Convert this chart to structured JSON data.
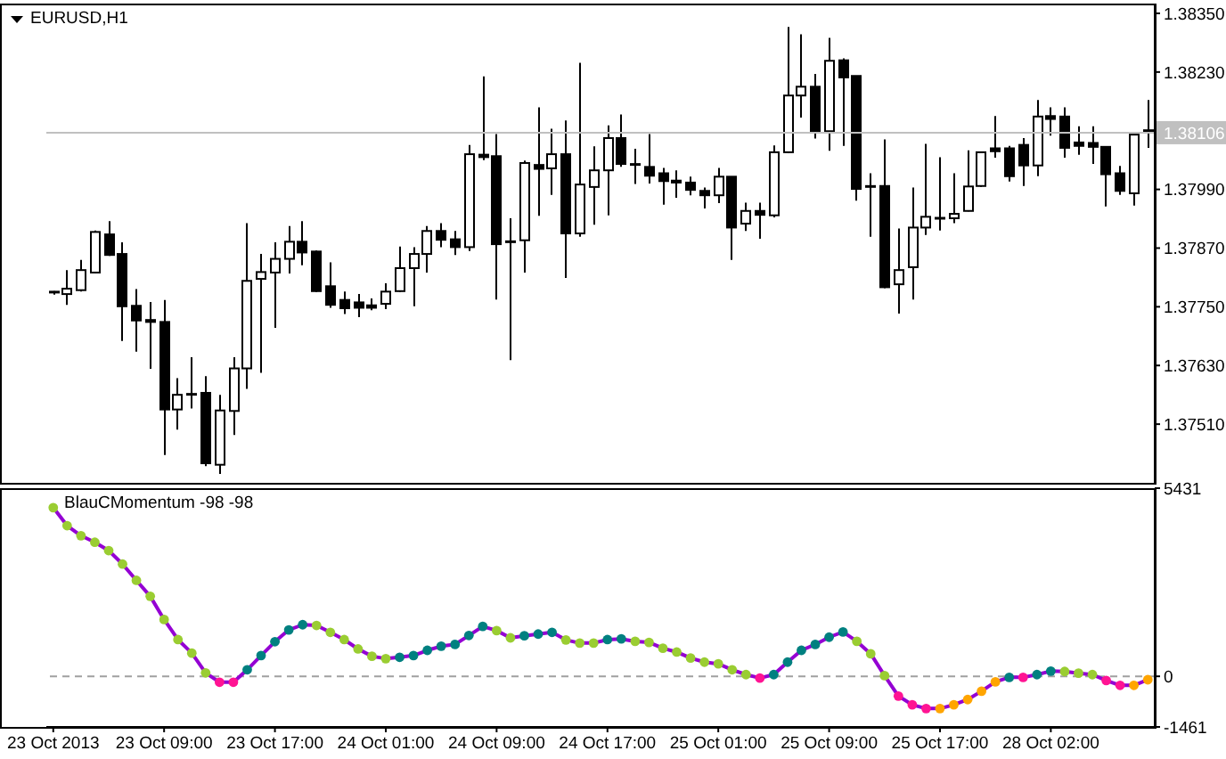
{
  "chart_data": [
    {
      "type": "candlestick",
      "title": "EURUSD,H1",
      "color": "#000000",
      "categories": [
        null,
        null,
        null,
        null,
        null,
        null,
        null,
        null,
        null,
        null,
        null,
        null,
        null,
        null,
        null,
        null,
        null,
        null,
        null,
        null,
        null,
        null,
        null,
        null,
        null,
        null,
        null,
        null,
        null,
        null,
        null,
        null,
        null,
        null,
        null,
        null,
        null,
        null,
        null,
        null,
        null,
        null,
        null,
        null,
        null,
        null,
        null,
        null,
        null,
        null,
        null,
        null,
        null,
        null,
        null,
        null,
        null,
        null,
        null,
        null,
        null,
        null,
        null,
        null,
        null,
        null,
        null,
        null,
        null,
        null,
        null,
        null,
        null,
        null,
        null,
        null,
        null,
        null,
        null,
        null
      ],
      "ohlc": [
        [
          1.3778,
          1.37782,
          1.37775,
          1.37777
        ],
        [
          1.37776,
          1.37825,
          1.37754,
          1.37787
        ],
        [
          1.37784,
          1.37846,
          1.37781,
          1.37825
        ],
        [
          1.3782,
          1.37906,
          1.37819,
          1.37903
        ],
        [
          1.37898,
          1.37925,
          1.37854,
          1.37856
        ],
        [
          1.37858,
          1.37882,
          1.3768,
          1.37751
        ],
        [
          1.37752,
          1.37786,
          1.37658,
          1.37722
        ],
        [
          1.37723,
          1.3776,
          1.37623,
          1.37719
        ],
        [
          1.37719,
          1.37764,
          1.37447,
          1.3754
        ],
        [
          1.3754,
          1.37604,
          1.37499,
          1.3757
        ],
        [
          1.37571,
          1.37647,
          1.37542,
          1.37571
        ],
        [
          1.37574,
          1.37608,
          1.37424,
          1.3743
        ],
        [
          1.37427,
          1.3757,
          1.37408,
          1.37538
        ],
        [
          1.37537,
          1.37647,
          1.37488,
          1.37624
        ],
        [
          1.37624,
          1.37921,
          1.37582,
          1.37803
        ],
        [
          1.37807,
          1.37858,
          1.37615,
          1.37821
        ],
        [
          1.3782,
          1.37882,
          1.37707,
          1.37848
        ],
        [
          1.37848,
          1.37915,
          1.37818,
          1.37883
        ],
        [
          1.37883,
          1.37925,
          1.37835,
          1.37861
        ],
        [
          1.37863,
          1.37865,
          1.3778,
          1.37782
        ],
        [
          1.37792,
          1.37841,
          1.37748,
          1.37754
        ],
        [
          1.37764,
          1.37781,
          1.37735,
          1.37747
        ],
        [
          1.37759,
          1.37776,
          1.37729,
          1.37748
        ],
        [
          1.37753,
          1.37767,
          1.37743,
          1.37748
        ],
        [
          1.37756,
          1.37798,
          1.37745,
          1.37781
        ],
        [
          1.37782,
          1.37873,
          1.3778,
          1.37829
        ],
        [
          1.37829,
          1.37872,
          1.37751,
          1.37858
        ],
        [
          1.37858,
          1.37915,
          1.3782,
          1.37905
        ],
        [
          1.37905,
          1.37921,
          1.37872,
          1.37887
        ],
        [
          1.37888,
          1.37905,
          1.37856,
          1.37872
        ],
        [
          1.37872,
          1.38081,
          1.37864,
          1.38062
        ],
        [
          1.38061,
          1.38221,
          1.3805,
          1.38056
        ],
        [
          1.38058,
          1.38103,
          1.37765,
          1.37878
        ],
        [
          1.37883,
          1.37931,
          1.37641,
          1.37883
        ],
        [
          1.37886,
          1.38049,
          1.3782,
          1.38044
        ],
        [
          1.3804,
          1.38158,
          1.37936,
          1.38032
        ],
        [
          1.38033,
          1.38114,
          1.37979,
          1.38062
        ],
        [
          1.38062,
          1.38131,
          1.37809,
          1.379
        ],
        [
          1.379,
          1.38249,
          1.37893,
          1.38
        ],
        [
          1.37995,
          1.38078,
          1.37918,
          1.38029
        ],
        [
          1.38029,
          1.38121,
          1.37937,
          1.38095
        ],
        [
          1.38095,
          1.38143,
          1.38036,
          1.38042
        ],
        [
          1.38041,
          1.38073,
          1.38001,
          1.38039
        ],
        [
          1.38036,
          1.38103,
          1.38002,
          1.38018
        ],
        [
          1.38023,
          1.38034,
          1.37959,
          1.38007
        ],
        [
          1.38008,
          1.38029,
          1.37973,
          1.38004
        ],
        [
          1.38004,
          1.38016,
          1.37978,
          1.37989
        ],
        [
          1.37987,
          1.37994,
          1.37951,
          1.37978
        ],
        [
          1.37978,
          1.38034,
          1.37962,
          1.38016
        ],
        [
          1.38016,
          1.38016,
          1.37846,
          1.37912
        ],
        [
          1.3792,
          1.37963,
          1.37905,
          1.37946
        ],
        [
          1.37946,
          1.37963,
          1.37889,
          1.37938
        ],
        [
          1.37937,
          1.3808,
          1.37933,
          1.38066
        ],
        [
          1.38066,
          1.38322,
          1.38064,
          1.38182
        ],
        [
          1.38182,
          1.38307,
          1.38137,
          1.382
        ],
        [
          1.382,
          1.38226,
          1.38094,
          1.38109
        ],
        [
          1.38109,
          1.383,
          1.38069,
          1.38253
        ],
        [
          1.38254,
          1.38258,
          1.38079,
          1.38219
        ],
        [
          1.38222,
          1.38222,
          1.37967,
          1.37991
        ],
        [
          1.37996,
          1.38023,
          1.37893,
          1.37993
        ],
        [
          1.37997,
          1.38092,
          1.37788,
          1.3779
        ],
        [
          1.37796,
          1.3791,
          1.37736,
          1.37825
        ],
        [
          1.37831,
          1.37994,
          1.37765,
          1.37912
        ],
        [
          1.37912,
          1.38083,
          1.37897,
          1.37934
        ],
        [
          1.37931,
          1.38056,
          1.37906,
          1.37931
        ],
        [
          1.37931,
          1.38023,
          1.37921,
          1.3794
        ],
        [
          1.37946,
          1.3807,
          1.37945,
          1.37996
        ],
        [
          1.37997,
          1.38066,
          1.37995,
          1.38066
        ],
        [
          1.38074,
          1.3814,
          1.38055,
          1.38068
        ],
        [
          1.38074,
          1.38079,
          1.38006,
          1.38017
        ],
        [
          1.38081,
          1.38095,
          1.37997,
          1.38039
        ],
        [
          1.38039,
          1.38173,
          1.38017,
          1.38139
        ],
        [
          1.3814,
          1.38158,
          1.381,
          1.38134
        ],
        [
          1.38139,
          1.38158,
          1.38055,
          1.38075
        ],
        [
          1.38086,
          1.38119,
          1.38061,
          1.38079
        ],
        [
          1.38085,
          1.38119,
          1.38042,
          1.38077
        ],
        [
          1.38077,
          1.38077,
          1.37955,
          1.38021
        ],
        [
          1.38023,
          1.38038,
          1.37979,
          1.37987
        ],
        [
          1.37982,
          1.38102,
          1.37957,
          1.38102
        ],
        [
          1.38111,
          1.38173,
          1.38075,
          1.38106
        ]
      ],
      "ylim": [
        1.3739,
        1.3837
      ],
      "yticks": [
        {
          "value": 1.3751,
          "label": "1.37510"
        },
        {
          "value": 1.3763,
          "label": "1.37630"
        },
        {
          "value": 1.3775,
          "label": "1.37750"
        },
        {
          "value": 1.3787,
          "label": "1.37870"
        },
        {
          "value": 1.3799,
          "label": "1.37990"
        },
        {
          "value": 1.3823,
          "label": "1.38230"
        },
        {
          "value": 1.3835,
          "label": "1.38350"
        }
      ],
      "ref_lines": [
        {
          "axis": "y",
          "value": 1.38106,
          "label": "1.38106",
          "color": "#c0c0c0"
        }
      ],
      "tick_labels": "y"
    },
    {
      "type": "line",
      "title": "BlauCMomentum -98 -98",
      "categories": [
        "23 Oct 2013",
        null,
        null,
        null,
        null,
        null,
        null,
        null,
        "23 Oct 09:00",
        null,
        null,
        null,
        null,
        null,
        null,
        null,
        "23 Oct 17:00",
        null,
        null,
        null,
        null,
        null,
        null,
        null,
        "24 Oct 01:00",
        null,
        null,
        null,
        null,
        null,
        null,
        null,
        "24 Oct 09:00",
        null,
        null,
        null,
        null,
        null,
        null,
        null,
        "24 Oct 17:00",
        null,
        null,
        null,
        null,
        null,
        null,
        null,
        "25 Oct 01:00",
        null,
        null,
        null,
        null,
        null,
        null,
        null,
        "25 Oct 09:00",
        null,
        null,
        null,
        null,
        null,
        null,
        null,
        "25 Oct 17:00",
        null,
        null,
        null,
        null,
        null,
        null,
        null,
        "28 Oct 02:00",
        null,
        null,
        null,
        null,
        null,
        null,
        null
      ],
      "series": [
        {
          "type": "line",
          "color": "#9400d3",
          "values": [
            4870,
            4350,
            4060,
            3870,
            3630,
            3240,
            2770,
            2310,
            1640,
            1060,
            670,
            100,
            -170,
            -170,
            190,
            600,
            1000,
            1340,
            1490,
            1470,
            1270,
            1060,
            790,
            580,
            510,
            550,
            600,
            750,
            870,
            920,
            1180,
            1440,
            1320,
            1110,
            1170,
            1220,
            1270,
            1050,
            960,
            960,
            1060,
            1080,
            1010,
            980,
            810,
            700,
            530,
            410,
            360,
            190,
            50,
            -50,
            50,
            410,
            750,
            920,
            1130,
            1280,
            1010,
            650,
            20,
            -570,
            -820,
            -930,
            -930,
            -820,
            -670,
            -430,
            -160,
            -30,
            -30,
            50,
            150,
            140,
            90,
            50,
            -120,
            -260,
            -260,
            -98
          ]
        },
        {
          "type": "scatter",
          "marker": "circle",
          "values": [
            4870,
            4350,
            4060,
            3870,
            3630,
            3240,
            2770,
            2310,
            1640,
            1060,
            670,
            100,
            -170,
            -170,
            190,
            600,
            1000,
            1340,
            1490,
            1470,
            1270,
            1060,
            790,
            580,
            510,
            550,
            600,
            750,
            870,
            920,
            1180,
            1440,
            1320,
            1110,
            1170,
            1220,
            1270,
            1050,
            960,
            960,
            1060,
            1080,
            1010,
            980,
            810,
            700,
            530,
            410,
            360,
            190,
            50,
            -50,
            50,
            410,
            750,
            920,
            1130,
            1280,
            1010,
            650,
            20,
            -570,
            -820,
            -930,
            -930,
            -820,
            -670,
            -430,
            -160,
            -30,
            -30,
            50,
            150,
            140,
            90,
            50,
            -120,
            -260,
            -260,
            -98
          ],
          "colors": [
            "#9acd32",
            "#9acd32",
            "#9acd32",
            "#9acd32",
            "#9acd32",
            "#9acd32",
            "#9acd32",
            "#9acd32",
            "#9acd32",
            "#9acd32",
            "#9acd32",
            "#9acd32",
            "#ff1493",
            "#ff1493",
            "#008080",
            "#008080",
            "#008080",
            "#008080",
            "#008080",
            "#9acd32",
            "#9acd32",
            "#9acd32",
            "#9acd32",
            "#9acd32",
            "#9acd32",
            "#008080",
            "#008080",
            "#008080",
            "#008080",
            "#008080",
            "#008080",
            "#008080",
            "#9acd32",
            "#9acd32",
            "#008080",
            "#008080",
            "#008080",
            "#9acd32",
            "#9acd32",
            "#9acd32",
            "#008080",
            "#008080",
            "#9acd32",
            "#9acd32",
            "#9acd32",
            "#9acd32",
            "#9acd32",
            "#9acd32",
            "#9acd32",
            "#9acd32",
            "#9acd32",
            "#ff1493",
            "#008080",
            "#008080",
            "#008080",
            "#008080",
            "#008080",
            "#008080",
            "#9acd32",
            "#9acd32",
            "#9acd32",
            "#ff1493",
            "#ff1493",
            "#ff1493",
            "#ffa500",
            "#ffa500",
            "#ffa500",
            "#ffa500",
            "#ffa500",
            "#008080",
            "#ff1493",
            "#008080",
            "#008080",
            "#9acd32",
            "#9acd32",
            "#9acd32",
            "#ff1493",
            "#ff1493",
            "#ffa500",
            "#ffa500"
          ]
        }
      ],
      "ylim": [
        -1461,
        5431
      ],
      "yticks": [
        -1461,
        0,
        5431
      ],
      "ref_lines": [
        {
          "axis": "y",
          "value": 0,
          "color": "#a0a0a0",
          "line_style": "dashed"
        }
      ]
    }
  ]
}
